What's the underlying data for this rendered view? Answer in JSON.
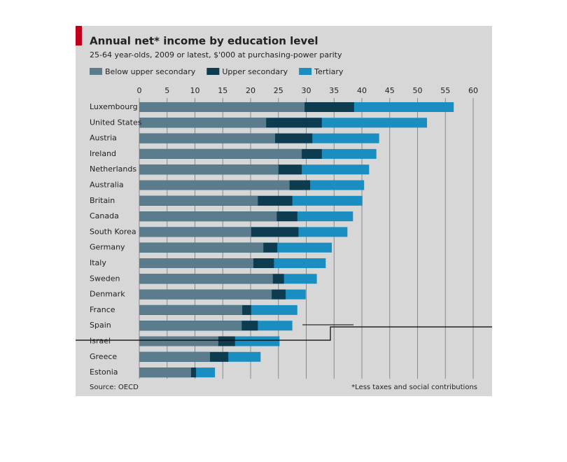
{
  "chart_data": {
    "type": "bar",
    "orientation": "horizontal",
    "overlap": true,
    "title": "Annual net* income by education level",
    "subtitle": "25-64 year-olds, 2009 or latest, $'000 at purchasing-power parity",
    "categories": [
      "Luxembourg",
      "United States",
      "Austria",
      "Ireland",
      "Netherlands",
      "Australia",
      "Britain",
      "Canada",
      "South Korea",
      "Germany",
      "Italy",
      "Sweden",
      "Denmark",
      "France",
      "Spain",
      "Israel",
      "Greece",
      "Estonia"
    ],
    "series": [
      {
        "name": "Below upper secondary",
        "color": "#5b7c8c",
        "values": [
          29.7,
          22.8,
          24.4,
          29.2,
          25.0,
          27.0,
          21.3,
          24.7,
          20.1,
          22.3,
          20.5,
          24.0,
          23.8,
          18.5,
          18.4,
          14.2,
          12.7,
          9.3
        ]
      },
      {
        "name": "Upper secondary",
        "color": "#0d3b50",
        "values": [
          38.6,
          32.8,
          31.1,
          32.8,
          29.2,
          30.7,
          27.5,
          28.4,
          28.6,
          24.8,
          24.2,
          26.0,
          26.3,
          20.1,
          21.3,
          17.2,
          16.0,
          10.2
        ]
      },
      {
        "name": "Tertiary",
        "color": "#1a8ec0",
        "values": [
          56.5,
          51.7,
          43.1,
          42.6,
          41.3,
          40.4,
          40.1,
          38.4,
          37.4,
          34.6,
          33.5,
          31.9,
          29.9,
          28.4,
          27.5,
          25.2,
          21.8,
          13.6
        ]
      }
    ],
    "xlim": [
      0,
      60
    ],
    "xticks": [
      0,
      5,
      10,
      15,
      20,
      25,
      30,
      35,
      40,
      45,
      50,
      55,
      60
    ],
    "grid": true,
    "source": "Source: OECD",
    "footnote": "*Less taxes and social contributions"
  }
}
